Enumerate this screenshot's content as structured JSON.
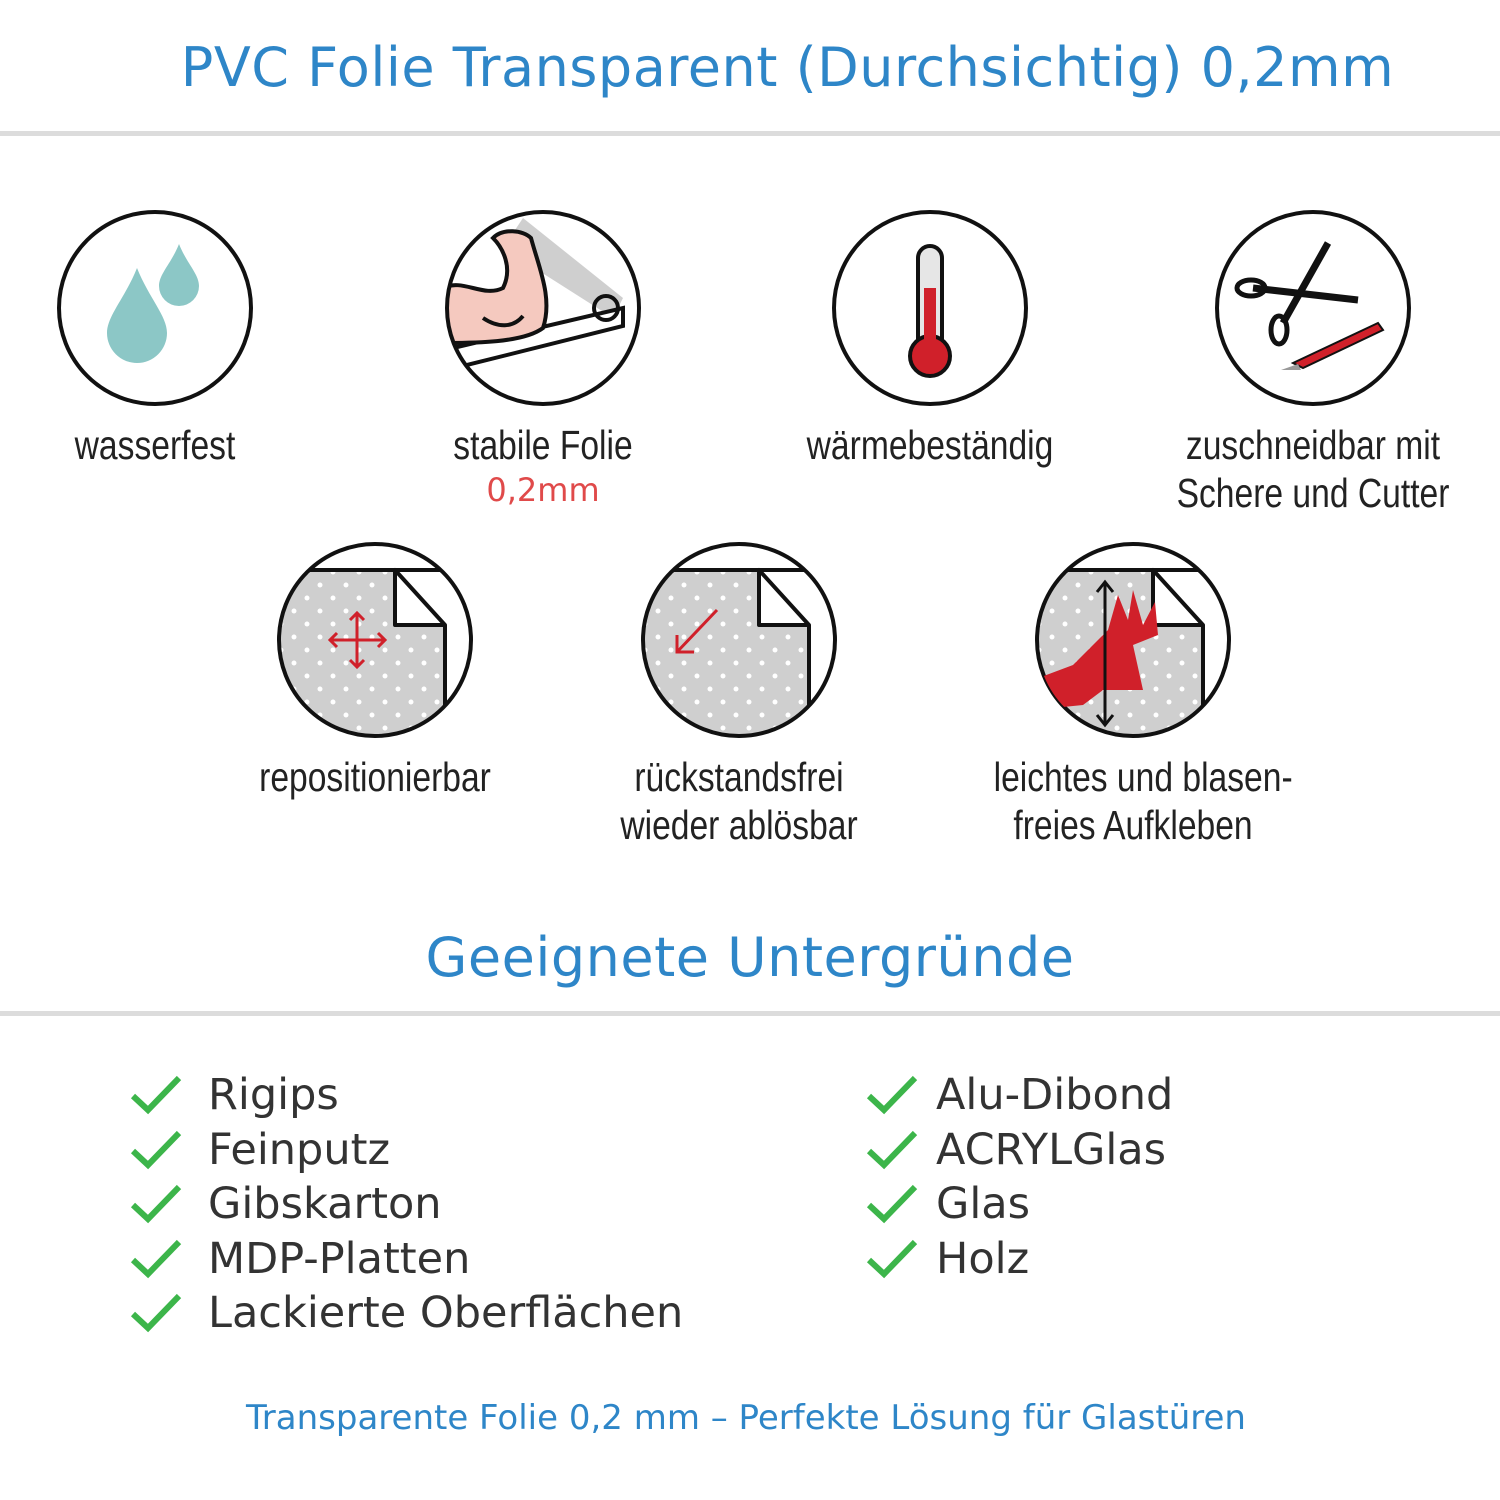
{
  "header": {
    "title": "PVC Folie Transparent (Durchsichtig) 0,2mm"
  },
  "features": [
    {
      "icon": "water-drops-icon",
      "label": "wasserfest"
    },
    {
      "icon": "strong-arm-icon",
      "label": "stabile Folie",
      "sublabel": "0,2mm"
    },
    {
      "icon": "thermometer-icon",
      "label": "wärmebeständig"
    },
    {
      "icon": "scissors-cutter-icon",
      "label": "zuschneidbar mit",
      "label2": "Schere und Cutter"
    },
    {
      "icon": "reposition-arrows-icon",
      "label": "repositionierbar"
    },
    {
      "icon": "peel-off-icon",
      "label": "rückstandsfrei",
      "label2": "wieder ablösbar"
    },
    {
      "icon": "hand-smooth-icon",
      "label": "leichtes und blasen-",
      "label2": "freies Aufkleben"
    }
  ],
  "surfaces": {
    "title": "Geeignete Untergründe",
    "left": [
      "Rigips",
      "Feinputz",
      "Gibskarton",
      "MDP-Platten",
      "Lackierte Oberflächen"
    ],
    "right": [
      "Alu-Dibond",
      "ACRYLGlas",
      "Glas",
      "Holz"
    ]
  },
  "footer": {
    "text": "Transparente Folie 0,2 mm – Perfekte Lösung für Glastüren"
  },
  "colors": {
    "accent": "#2e86c8",
    "check": "#3cb54a",
    "highlight": "#e04a4a",
    "icon_red": "#d0202a"
  }
}
